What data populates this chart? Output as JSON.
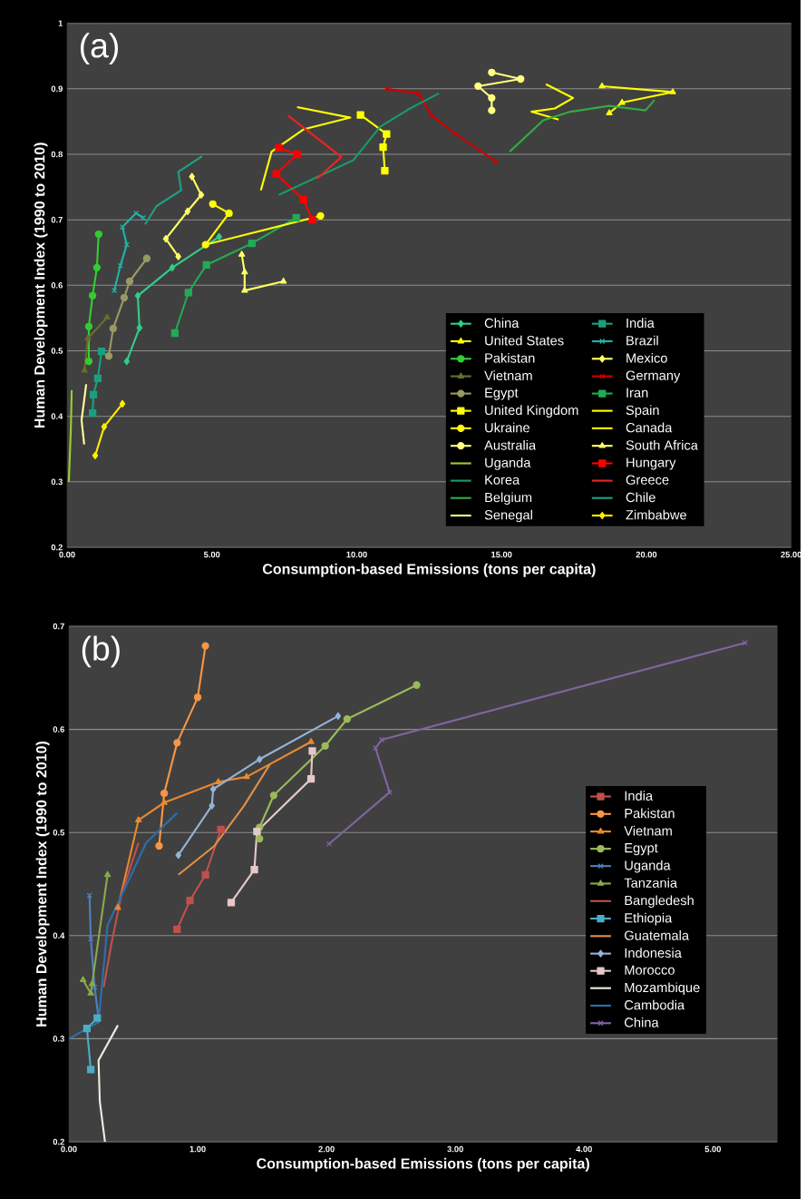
{
  "chart_data": [
    {
      "type": "line",
      "annotations": [
        "(a)"
      ],
      "xlabel": "Consumption-based Emissions (tons per capita)",
      "ylabel": "Human Development Index (1990  to 2010)",
      "xlim": [
        0,
        25
      ],
      "ylim": [
        0.2,
        1
      ],
      "xticks": [
        {
          "value": 0,
          "label": "0.00"
        },
        {
          "value": 5,
          "label": "5.00"
        },
        {
          "value": 10,
          "label": "10.00"
        },
        {
          "value": 15,
          "label": "15.00"
        },
        {
          "value": 20,
          "label": "20.00"
        },
        {
          "value": 25,
          "label": "25.00"
        }
      ],
      "yticks": [
        0.2,
        0.3,
        0.4,
        0.5,
        0.6,
        0.7,
        0.8,
        0.9,
        1
      ],
      "grid": "y",
      "legend": "bottom right",
      "series": [
        {
          "name": "China",
          "color": "#33cc88",
          "marker": "diamond",
          "x": [
            2.06,
            2.5,
            2.44,
            3.63,
            5.25
          ],
          "values": [
            0.484,
            0.535,
            0.584,
            0.627,
            0.674
          ]
        },
        {
          "name": "India",
          "color": "#1aa080",
          "marker": "square",
          "x": [
            0.88,
            0.91,
            1.06,
            1.19
          ],
          "values": [
            0.405,
            0.433,
            0.458,
            0.499
          ]
        },
        {
          "name": "United States",
          "color": "#ffff00",
          "marker": "triangle",
          "x": [
            18.72,
            19.16,
            20.91,
            18.47
          ],
          "values": [
            0.863,
            0.879,
            0.895,
            0.904
          ]
        },
        {
          "name": "Brazil",
          "color": "#20b2aa",
          "marker": "cross",
          "x": [
            1.63,
            1.84,
            2.06,
            1.91,
            2.38,
            2.63
          ],
          "values": [
            0.592,
            0.63,
            0.662,
            0.689,
            0.71,
            0.703
          ]
        },
        {
          "name": "Pakistan",
          "color": "#33cc33",
          "marker": "circle",
          "x": [
            0.75,
            0.75,
            0.88,
            1.03,
            1.09
          ],
          "values": [
            0.484,
            0.537,
            0.584,
            0.627,
            0.678
          ]
        },
        {
          "name": "Mexico",
          "color": "#ffff66",
          "marker": "diamond",
          "x": [
            3.84,
            3.41,
            4.16,
            4.63,
            4.31
          ],
          "values": [
            0.644,
            0.671,
            0.713,
            0.738,
            0.766
          ]
        },
        {
          "name": "Vietnam",
          "color": "#6b6b2f",
          "marker": "triangle",
          "x": [
            0.6,
            0.72,
            1.38
          ],
          "values": [
            0.47,
            0.519,
            0.551
          ]
        },
        {
          "name": "Germany",
          "color": "#cc0000",
          "marker": "cross",
          "x": [
            11.03,
            12.13,
            12.59,
            13.41,
            14.81
          ],
          "values": [
            0.9,
            0.893,
            0.859,
            0.831,
            0.789
          ]
        },
        {
          "name": "Egypt",
          "color": "#999966",
          "marker": "circle",
          "x": [
            1.44,
            1.59,
            1.97,
            2.16,
            2.75
          ],
          "values": [
            0.492,
            0.534,
            0.581,
            0.606,
            0.641
          ]
        },
        {
          "name": "Iran",
          "color": "#22aa55",
          "marker": "square",
          "x": [
            3.72,
            4.19,
            4.81,
            6.38,
            7.91
          ],
          "values": [
            0.527,
            0.589,
            0.631,
            0.664,
            0.703
          ]
        },
        {
          "name": "United Kingdom",
          "color": "#ffff00",
          "marker": "square",
          "x": [
            10.97,
            10.91,
            11.03,
            10.13
          ],
          "values": [
            0.775,
            0.811,
            0.831,
            0.86
          ]
        },
        {
          "name": "Spain",
          "color": "#ffff00",
          "marker": "none",
          "x": [
            6.69,
            7.06,
            8.16,
            9.78,
            7.94
          ],
          "values": [
            0.745,
            0.804,
            0.838,
            0.856,
            0.872
          ]
        },
        {
          "name": "Ukraine",
          "color": "#ffff00",
          "marker": "circle",
          "x": [
            8.75,
            4.78,
            5.59,
            5.03
          ],
          "values": [
            0.706,
            0.662,
            0.71,
            0.724
          ]
        },
        {
          "name": "Canada",
          "color": "#ffff00",
          "marker": "none",
          "x": [
            16.97,
            16.03,
            16.84,
            17.47,
            16.53
          ],
          "values": [
            0.853,
            0.865,
            0.87,
            0.886,
            0.907
          ]
        },
        {
          "name": "Australia",
          "color": "#ffff80",
          "marker": "circle",
          "x": [
            14.66,
            14.66,
            14.19,
            15.66,
            14.66
          ],
          "values": [
            0.867,
            0.886,
            0.904,
            0.915,
            0.925
          ]
        },
        {
          "name": "South Africa",
          "color": "#ffff66",
          "marker": "triangle",
          "x": [
            6.03,
            6.13,
            6.13,
            7.47
          ],
          "values": [
            0.647,
            0.62,
            0.592,
            0.606
          ]
        },
        {
          "name": "Uganda",
          "color": "#99cc33",
          "marker": "none",
          "x": [
            0.06,
            0.13,
            0.16
          ],
          "values": [
            0.3,
            0.38,
            0.44
          ]
        },
        {
          "name": "Hungary",
          "color": "#ff0000",
          "marker": "square",
          "x": [
            8.47,
            8.16,
            7.22,
            7.94,
            7.31
          ],
          "values": [
            0.7,
            0.731,
            0.77,
            0.8,
            0.81
          ]
        },
        {
          "name": "Korea",
          "color": "#1a9966",
          "marker": "none",
          "x": [
            7.31,
            9.88,
            10.81,
            11.84,
            12.84
          ],
          "values": [
            0.738,
            0.791,
            0.842,
            0.87,
            0.893
          ]
        },
        {
          "name": "Greece",
          "color": "#ee2222",
          "marker": "none",
          "x": [
            8.63,
            9.47,
            7.63
          ],
          "values": [
            0.763,
            0.796,
            0.859
          ]
        },
        {
          "name": "Belgium",
          "color": "#33aa44",
          "marker": "none",
          "x": [
            15.28,
            16.44,
            17.38,
            18.72,
            19.97,
            20.28
          ],
          "values": [
            0.804,
            0.852,
            0.865,
            0.874,
            0.867,
            0.883
          ]
        },
        {
          "name": "Chile",
          "color": "#20a080",
          "marker": "none",
          "x": [
            2.69,
            3.09,
            3.94,
            3.84,
            4.66
          ],
          "values": [
            0.693,
            0.721,
            0.745,
            0.773,
            0.797
          ]
        },
        {
          "name": "Senegal",
          "color": "#ffff99",
          "marker": "none",
          "x": [
            0.59,
            0.5,
            0.66
          ],
          "values": [
            0.357,
            0.394,
            0.449
          ]
        },
        {
          "name": "Zimbabwe",
          "color": "#ffee00",
          "marker": "diamond",
          "x": [
            1.91,
            1.28,
            0.97
          ],
          "values": [
            0.419,
            0.384,
            0.34
          ]
        }
      ]
    },
    {
      "type": "line",
      "annotations": [
        "(b)"
      ],
      "xlabel": "Consumption-based Emissions (tons per capita)",
      "ylabel": "Human Development Index (1990 to 2010)",
      "xlim": [
        0,
        5.5
      ],
      "ylim": [
        0.2,
        0.7
      ],
      "xticks": [
        {
          "value": 0,
          "label": "0.00"
        },
        {
          "value": 1,
          "label": "1.00"
        },
        {
          "value": 2,
          "label": "2.00"
        },
        {
          "value": 3,
          "label": "3.00"
        },
        {
          "value": 4,
          "label": "4.00"
        },
        {
          "value": 5,
          "label": "5.00"
        }
      ],
      "yticks": [
        0.2,
        0.3,
        0.4,
        0.5,
        0.6,
        0.7
      ],
      "grid": "y",
      "legend": "right",
      "series": [
        {
          "name": "India",
          "color": "#c0504d",
          "marker": "square",
          "x": [
            0.84,
            0.94,
            1.06,
            1.18
          ],
          "values": [
            0.406,
            0.434,
            0.459,
            0.503
          ]
        },
        {
          "name": "Pakistan",
          "color": "#f79646",
          "marker": "circle",
          "x": [
            0.7,
            0.74,
            0.84,
            1.0,
            1.06
          ],
          "values": [
            0.487,
            0.538,
            0.587,
            0.631,
            0.681
          ]
        },
        {
          "name": "Vietnam",
          "color": "#e8892e",
          "marker": "triangle",
          "x": [
            0.38,
            0.54,
            0.74,
            1.16,
            1.38,
            1.88
          ],
          "values": [
            0.427,
            0.512,
            0.529,
            0.549,
            0.554,
            0.588
          ]
        },
        {
          "name": "Egypt",
          "color": "#9bbb59",
          "marker": "circle",
          "x": [
            1.48,
            1.48,
            1.59,
            1.99,
            2.16,
            2.7
          ],
          "values": [
            0.494,
            0.505,
            0.536,
            0.584,
            0.61,
            0.643
          ]
        },
        {
          "name": "Uganda",
          "color": "#4f81bd",
          "marker": "cross",
          "x": [
            0.23,
            0.2,
            0.17,
            0.16
          ],
          "values": [
            0.32,
            0.35,
            0.397,
            0.439
          ]
        },
        {
          "name": "Tanzania",
          "color": "#8aa84c",
          "marker": "triangle",
          "x": [
            0.11,
            0.17,
            0.18,
            0.3
          ],
          "values": [
            0.357,
            0.344,
            0.353,
            0.459
          ]
        },
        {
          "name": "Bangledesh",
          "color": "#c0504d",
          "marker": "none",
          "x": [
            0.27,
            0.33,
            0.41,
            0.54
          ],
          "values": [
            0.35,
            0.392,
            0.441,
            0.49
          ]
        },
        {
          "name": "Ethiopia",
          "color": "#4bacc6",
          "marker": "square",
          "x": [
            0.17,
            0.14,
            0.22
          ],
          "values": [
            0.27,
            0.31,
            0.32
          ]
        },
        {
          "name": "Guatemala",
          "color": "#e0904a",
          "marker": "none",
          "x": [
            0.85,
            1.13,
            1.36,
            1.56
          ],
          "values": [
            0.459,
            0.487,
            0.526,
            0.566
          ]
        },
        {
          "name": "Indonesia",
          "color": "#95b3d7",
          "marker": "diamond",
          "x": [
            0.85,
            1.11,
            1.12,
            1.48,
            2.09
          ],
          "values": [
            0.478,
            0.526,
            0.542,
            0.571,
            0.613
          ]
        },
        {
          "name": "Morocco",
          "color": "#e6c8c8",
          "marker": "square",
          "x": [
            1.26,
            1.44,
            1.46,
            1.88,
            1.89
          ],
          "values": [
            0.432,
            0.464,
            0.501,
            0.552,
            0.579
          ]
        },
        {
          "name": "Mozambique",
          "color": "#eeece1",
          "marker": "none",
          "x": [
            0.28,
            0.24,
            0.23,
            0.38
          ],
          "values": [
            0.2,
            0.239,
            0.279,
            0.313
          ]
        },
        {
          "name": "Cambodia",
          "color": "#2c6fad",
          "marker": "none",
          "x": [
            0.0,
            0.23,
            0.3,
            0.6,
            0.84
          ],
          "values": [
            0.3,
            0.316,
            0.41,
            0.49,
            0.519
          ]
        },
        {
          "name": "China",
          "color": "#8064a2",
          "marker": "cross",
          "x": [
            2.02,
            2.49,
            2.38,
            2.43,
            5.25
          ],
          "values": [
            0.489,
            0.539,
            0.582,
            0.59,
            0.684
          ]
        }
      ]
    }
  ]
}
